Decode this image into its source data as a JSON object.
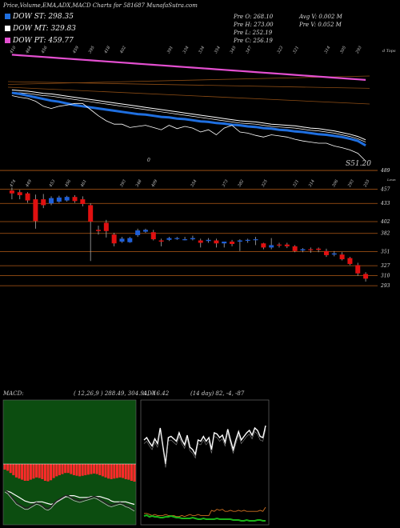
{
  "header": {
    "title": "Price,Volume,EMA,ADX,MACD Charts for 581687 MunafaSutra.com"
  },
  "legend": [
    {
      "label": "DOW ST: 298.35",
      "color": "#1f6fe0"
    },
    {
      "label": "DOW MT: 329.83",
      "color": "#ffffff"
    },
    {
      "label": "DOW PT: 459.77",
      "color": "#e34fd0"
    }
  ],
  "stats": {
    "prev_open": "Pre  O: 268.10",
    "prev_high": "Pre  H: 273.00",
    "prev_low": "Pre  L: 252.19",
    "prev_close": "Pre  C: 256.19",
    "avg_volume": "Avg V: 0.002  M",
    "prev_volume": "Pre  V: 0.052  M"
  },
  "ema_panel": {
    "corner_label": "d Tops",
    "price_label": "S51.20",
    "zero_label": "0",
    "top_labels": [
      "410",
      "464",
      "456",
      "",
      "459",
      "395",
      "418",
      "402",
      "",
      "",
      "391",
      "334",
      "354",
      "345",
      "347",
      "",
      "323",
      "321",
      "",
      "314",
      "305",
      "293"
    ]
  },
  "price_panel": {
    "top_labels": [
      "474",
      "449",
      "453",
      "456",
      "461",
      "",
      "393",
      "348",
      "409",
      "",
      "354",
      "",
      "373",
      "382",
      "325",
      "",
      "321",
      "314",
      "306",
      "293",
      "255"
    ],
    "right_label_extra": "Lows",
    "y_ticks": [
      489,
      457,
      433,
      402,
      382,
      351,
      327,
      310,
      293
    ],
    "y_range": [
      260,
      500
    ]
  },
  "macd_panel": {
    "label": "MACD:",
    "values": "( 12,26,9 ) 288.49, 304.91, -16.42"
  },
  "adx_panel": {
    "label": "ADX",
    "values": "(14 day) 82, -4, -87"
  },
  "colors": {
    "up": "#1f5fd8",
    "down": "#e01010",
    "bg": "#000000",
    "resistance": "#b25a17",
    "macd_bg": "#0c4d10",
    "macd_hist": "#ff2a2a",
    "ema_st": "#1f6fe0",
    "ema_pt": "#e34fd0"
  },
  "chart_data": {
    "type": "candlestick",
    "title": "Price,Volume,EMA,ADX,MACD Charts for 581687",
    "candles": [
      {
        "o": 455,
        "h": 460,
        "l": 440,
        "c": 450
      },
      {
        "o": 452,
        "h": 456,
        "l": 440,
        "c": 447
      },
      {
        "o": 450,
        "h": 452,
        "l": 434,
        "c": 438
      },
      {
        "o": 440,
        "h": 448,
        "l": 390,
        "c": 403
      },
      {
        "o": 440,
        "h": 449,
        "l": 425,
        "c": 430
      },
      {
        "o": 433,
        "h": 445,
        "l": 430,
        "c": 442
      },
      {
        "o": 436,
        "h": 446,
        "l": 434,
        "c": 443
      },
      {
        "o": 438,
        "h": 446,
        "l": 436,
        "c": 444
      },
      {
        "o": 444,
        "h": 447,
        "l": 434,
        "c": 437
      },
      {
        "o": 440,
        "h": 445,
        "l": 428,
        "c": 432
      },
      {
        "o": 430,
        "h": 433,
        "l": 335,
        "c": 402
      },
      {
        "o": 388,
        "h": 395,
        "l": 380,
        "c": 386
      },
      {
        "o": 400,
        "h": 405,
        "l": 375,
        "c": 386
      },
      {
        "o": 380,
        "h": 383,
        "l": 360,
        "c": 365
      },
      {
        "o": 368,
        "h": 376,
        "l": 366,
        "c": 373
      },
      {
        "o": 367,
        "h": 376,
        "l": 366,
        "c": 374
      },
      {
        "o": 379,
        "h": 390,
        "l": 376,
        "c": 387
      },
      {
        "o": 385,
        "h": 390,
        "l": 383,
        "c": 388
      },
      {
        "o": 384,
        "h": 388,
        "l": 370,
        "c": 372
      },
      {
        "o": 370,
        "h": 373,
        "l": 360,
        "c": 368
      },
      {
        "o": 371,
        "h": 376,
        "l": 369,
        "c": 374
      },
      {
        "o": 373,
        "h": 376,
        "l": 371,
        "c": 374
      },
      {
        "o": 372,
        "h": 376,
        "l": 370,
        "c": 372
      },
      {
        "o": 372,
        "h": 378,
        "l": 370,
        "c": 374
      },
      {
        "o": 370,
        "h": 373,
        "l": 358,
        "c": 366
      },
      {
        "o": 369,
        "h": 374,
        "l": 366,
        "c": 371
      },
      {
        "o": 370,
        "h": 373,
        "l": 358,
        "c": 365
      },
      {
        "o": 365,
        "h": 368,
        "l": 358,
        "c": 368
      },
      {
        "o": 368,
        "h": 371,
        "l": 360,
        "c": 364
      },
      {
        "o": 368,
        "h": 372,
        "l": 352,
        "c": 370
      },
      {
        "o": 370,
        "h": 373,
        "l": 366,
        "c": 371
      },
      {
        "o": 371,
        "h": 376,
        "l": 362,
        "c": 372
      },
      {
        "o": 365,
        "h": 366,
        "l": 355,
        "c": 358
      },
      {
        "o": 358,
        "h": 374,
        "l": 355,
        "c": 362
      },
      {
        "o": 363,
        "h": 366,
        "l": 358,
        "c": 362
      },
      {
        "o": 363,
        "h": 366,
        "l": 357,
        "c": 360
      },
      {
        "o": 360,
        "h": 362,
        "l": 350,
        "c": 352
      },
      {
        "o": 353,
        "h": 357,
        "l": 350,
        "c": 355
      },
      {
        "o": 355,
        "h": 358,
        "l": 349,
        "c": 354
      },
      {
        "o": 356,
        "h": 358,
        "l": 350,
        "c": 354
      },
      {
        "o": 352,
        "h": 356,
        "l": 342,
        "c": 345
      },
      {
        "o": 346,
        "h": 352,
        "l": 343,
        "c": 348
      },
      {
        "o": 346,
        "h": 350,
        "l": 336,
        "c": 338
      },
      {
        "o": 340,
        "h": 342,
        "l": 328,
        "c": 330
      },
      {
        "o": 328,
        "h": 332,
        "l": 310,
        "c": 314
      },
      {
        "o": 313,
        "h": 316,
        "l": 300,
        "c": 305
      }
    ],
    "ema_st": [
      460,
      458,
      455,
      452,
      449,
      446,
      444,
      441,
      438,
      436,
      434,
      432,
      430,
      428,
      426,
      424,
      422,
      421,
      419,
      417,
      416,
      414,
      413,
      411,
      409,
      408,
      406,
      405,
      403,
      402,
      400,
      399,
      397,
      396,
      394,
      393,
      391,
      390,
      388,
      386,
      385,
      383,
      381,
      378,
      374,
      366
    ],
    "ema_mt": [
      465,
      464,
      463,
      461,
      459,
      458,
      456,
      454,
      452,
      450,
      448,
      446,
      444,
      442,
      440,
      438,
      436,
      434,
      432,
      430,
      428,
      426,
      424,
      422,
      420,
      418,
      416,
      414,
      412,
      410,
      409,
      408,
      406,
      404,
      403,
      402,
      401,
      399,
      397,
      396,
      394,
      392,
      389,
      386,
      382,
      376
    ],
    "ema_pt": [
      528,
      527,
      526,
      525,
      524,
      523,
      522,
      521,
      520,
      519,
      518,
      517,
      516,
      515,
      514,
      513,
      512,
      511,
      510,
      509,
      508,
      507,
      506,
      505,
      504,
      503,
      502,
      501,
      500,
      499,
      498,
      497,
      496,
      495,
      494,
      493,
      492,
      491,
      490,
      489,
      488,
      487,
      486,
      485,
      484,
      483
    ],
    "price_line": [
      455,
      452,
      450,
      445,
      436,
      432,
      436,
      438,
      441,
      441,
      430,
      419,
      410,
      404,
      404,
      398,
      400,
      402,
      398,
      394,
      402,
      396,
      400,
      397,
      390,
      394,
      385,
      397,
      402,
      390,
      388,
      384,
      381,
      385,
      383,
      381,
      377,
      374,
      372,
      370,
      370,
      365,
      362,
      358,
      352,
      338
    ],
    "resistance_levels": [
      489,
      457,
      433,
      402,
      382,
      351,
      327,
      310,
      293
    ],
    "macd": {
      "macd_line": [
        -10,
        -12,
        -16,
        -20,
        -24,
        -26,
        -28,
        -30,
        -30,
        -28,
        -26,
        -24,
        -25,
        -27,
        -30,
        -31,
        -29,
        -25,
        -22,
        -20,
        -18,
        -16,
        -16,
        -18,
        -20,
        -21,
        -22,
        -21,
        -20,
        -19,
        -18,
        -17,
        -18,
        -20,
        -22,
        -24,
        -26,
        -27,
        -26,
        -25,
        -24,
        -25,
        -27,
        -28,
        -30,
        -32
      ],
      "signal_line": [
        -12,
        -13,
        -14,
        -16,
        -18,
        -20,
        -22,
        -24,
        -25,
        -26,
        -26,
        -25,
        -25,
        -25,
        -26,
        -27,
        -28,
        -27,
        -25,
        -23,
        -21,
        -19,
        -18,
        -18,
        -18,
        -19,
        -20,
        -20,
        -20,
        -20,
        -19,
        -19,
        -19,
        -19,
        -20,
        -21,
        -22,
        -24,
        -25,
        -25,
        -25,
        -25,
        -25,
        -26,
        -27,
        -28
      ]
    },
    "adx": {
      "plus_di": [
        60,
        62,
        58,
        55,
        61,
        57,
        70,
        55,
        40,
        62,
        63,
        61,
        59,
        66,
        60,
        56,
        64,
        54,
        52,
        48,
        60,
        59,
        63,
        59,
        62,
        52,
        66,
        65,
        62,
        64,
        58,
        69,
        60,
        52,
        60,
        67,
        60,
        63,
        66,
        68,
        64,
        70,
        68,
        63,
        62,
        72
      ],
      "minus_di": [
        14,
        14,
        13,
        12,
        13,
        12,
        12,
        12,
        13,
        12,
        12,
        12,
        11,
        11,
        12,
        11,
        12,
        13,
        12,
        12,
        13,
        12,
        12,
        12,
        12,
        17,
        16,
        18,
        17,
        18,
        16,
        16,
        17,
        16,
        16,
        17,
        16,
        17,
        16,
        16,
        16,
        16,
        16,
        17,
        16,
        20
      ],
      "adx_line": [
        7,
        8,
        6,
        7,
        6,
        6,
        5,
        5,
        6,
        6,
        7,
        6,
        5,
        5,
        4,
        4,
        4,
        4,
        5,
        4,
        3,
        3,
        4,
        3,
        3,
        3,
        3,
        4,
        3,
        3,
        3,
        3,
        3,
        2,
        2,
        2,
        1,
        1,
        2,
        1,
        1,
        1,
        2,
        2,
        1,
        1
      ]
    }
  }
}
